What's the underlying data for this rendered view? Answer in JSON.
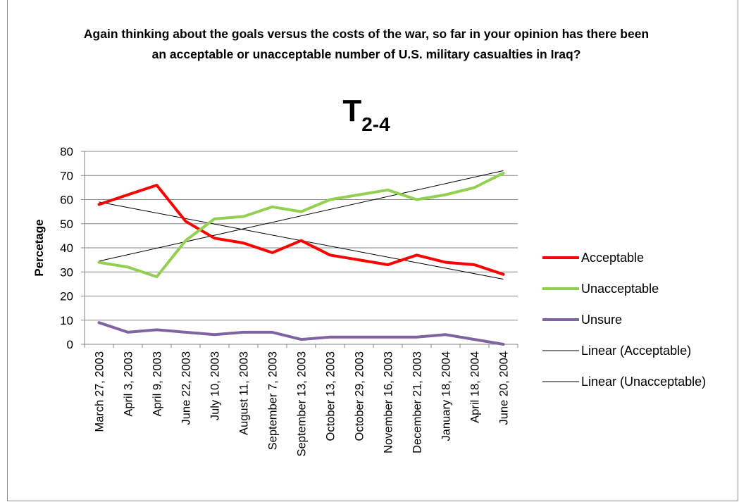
{
  "chart_data": {
    "type": "line",
    "title": "Again thinking about the goals versus the costs of the war, so far in your opinion has there been an acceptable or unacceptable number of U.S. military casualties in Iraq?",
    "subtitle_main": "T",
    "subtitle_sub": "2-4",
    "ylabel": "Percetage",
    "xlabel": "",
    "ylim": [
      0,
      80
    ],
    "yticks": [
      0,
      10,
      20,
      30,
      40,
      50,
      60,
      70,
      80
    ],
    "grid": true,
    "legend_position": "right",
    "categories": [
      "March 27, 2003",
      "April 3, 2003",
      "April 9, 2003",
      "June 22, 2003",
      "July 10, 2003",
      "August 11, 2003",
      "September 7, 2003",
      "September 13, 2003",
      "October 13, 2003",
      "October 29, 2003",
      "November 16, 2003",
      "December 21, 2003",
      "January 18, 2004",
      "April 18, 2004",
      "June 20, 2004"
    ],
    "series": [
      {
        "name": "Acceptable",
        "color": "#ff0000",
        "values": [
          58,
          62,
          66,
          51,
          44,
          42,
          38,
          43,
          37,
          35,
          33,
          37,
          34,
          33,
          29
        ]
      },
      {
        "name": "Unacceptable",
        "color": "#92d050",
        "values": [
          34,
          32,
          28,
          43,
          52,
          53,
          57,
          55,
          60,
          62,
          64,
          60,
          62,
          65,
          71
        ]
      },
      {
        "name": "Unsure",
        "color": "#8064a2",
        "values": [
          9,
          5,
          6,
          5,
          4,
          5,
          5,
          2,
          3,
          3,
          3,
          3,
          4,
          2,
          0
        ]
      }
    ],
    "trendlines": [
      {
        "name": "Linear (Acceptable)",
        "color": "#000000",
        "start": 59,
        "end": 27
      },
      {
        "name": "Linear (Unacceptable)",
        "color": "#000000",
        "start": 34.5,
        "end": 72
      }
    ]
  }
}
